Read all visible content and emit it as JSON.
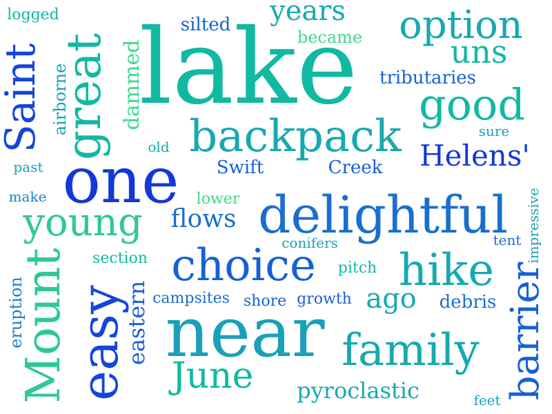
{
  "cloud": {
    "words": {
      "lake": "lake",
      "near": "near",
      "one": "one",
      "delightful": "delightful",
      "backpack": "backpack",
      "choice": "choice",
      "family": "family",
      "good": "good",
      "hike": "hike",
      "young": "young",
      "option": "option",
      "uns": "uns",
      "june": "June",
      "helens": "Helens'",
      "years": "years",
      "ago": "ago",
      "flows": "flows",
      "pyroclastic": "pyroclastic",
      "tributaries": "tributaries",
      "swift": "Swift",
      "creek": "Creek",
      "debris": "debris",
      "silted": "silted",
      "became": "became",
      "campsites": "campsites",
      "shore": "shore",
      "growth": "growth",
      "section": "section",
      "pitch": "pitch",
      "conifers": "conifers",
      "tent": "tent",
      "lower": "lower",
      "logged": "logged",
      "past": "past",
      "make": "make",
      "old": "old",
      "sure": "sure",
      "feet": "feet",
      "saint": "Saint",
      "great": "great",
      "mount": "Mount",
      "easy": "easy",
      "barrier": "barrier",
      "eastern": "eastern",
      "dammed": "dammed",
      "airborne": "airborne",
      "eruption": "eruption",
      "impressive": "impressive"
    }
  },
  "colors": {
    "background": "#ffffff",
    "teal": "#11b9a2",
    "green": "#2fc79a",
    "mint": "#3fd88e",
    "sea": "#16a9b0",
    "cyan": "#1aa0b8",
    "steel": "#1f7fc4",
    "ocean": "#1a6fcc",
    "blue": "#1660d6",
    "royal": "#1446dc",
    "navy": "#1238d8"
  }
}
